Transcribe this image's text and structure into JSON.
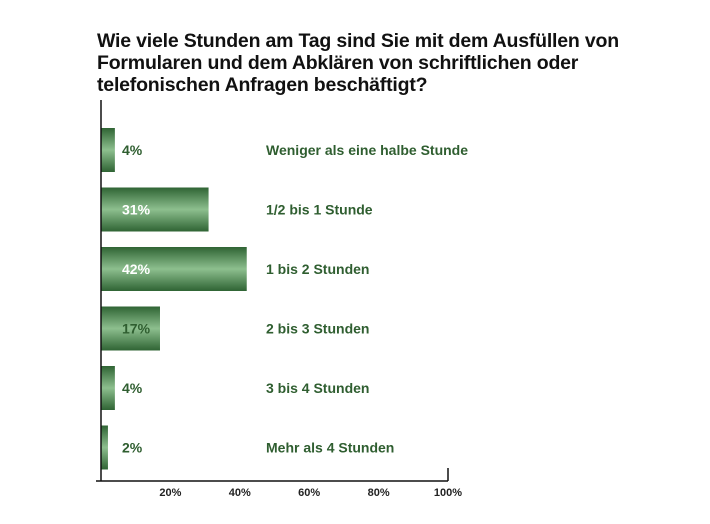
{
  "chart_data": {
    "type": "bar",
    "orientation": "horizontal",
    "title": "Wie viele Stunden am Tag sind Sie mit dem Ausfüllen von Formularen und dem Abklären von schriftlichen oder telefonischen Anfragen beschäftigt?",
    "categories": [
      "Weniger als eine halbe Stunde",
      "1/2 bis 1 Stunde",
      "1 bis 2 Stunden",
      "2 bis 3 Stunden",
      "3 bis 4 Stunden",
      "Mehr als 4 Stunden"
    ],
    "values": [
      4,
      31,
      42,
      17,
      4,
      2
    ],
    "value_labels": [
      "4%",
      "31%",
      "42%",
      "17%",
      "4%",
      "2%"
    ],
    "xlim": [
      0,
      100
    ],
    "xticks": [
      20,
      40,
      60,
      80,
      100
    ],
    "xtick_labels": [
      "20%",
      "40%",
      "60%",
      "80%",
      "100%"
    ],
    "grid": false,
    "colors": {
      "bar": "#3f7a44",
      "bar_light": "#8dbf8e",
      "label": "#2f5e30"
    }
  }
}
